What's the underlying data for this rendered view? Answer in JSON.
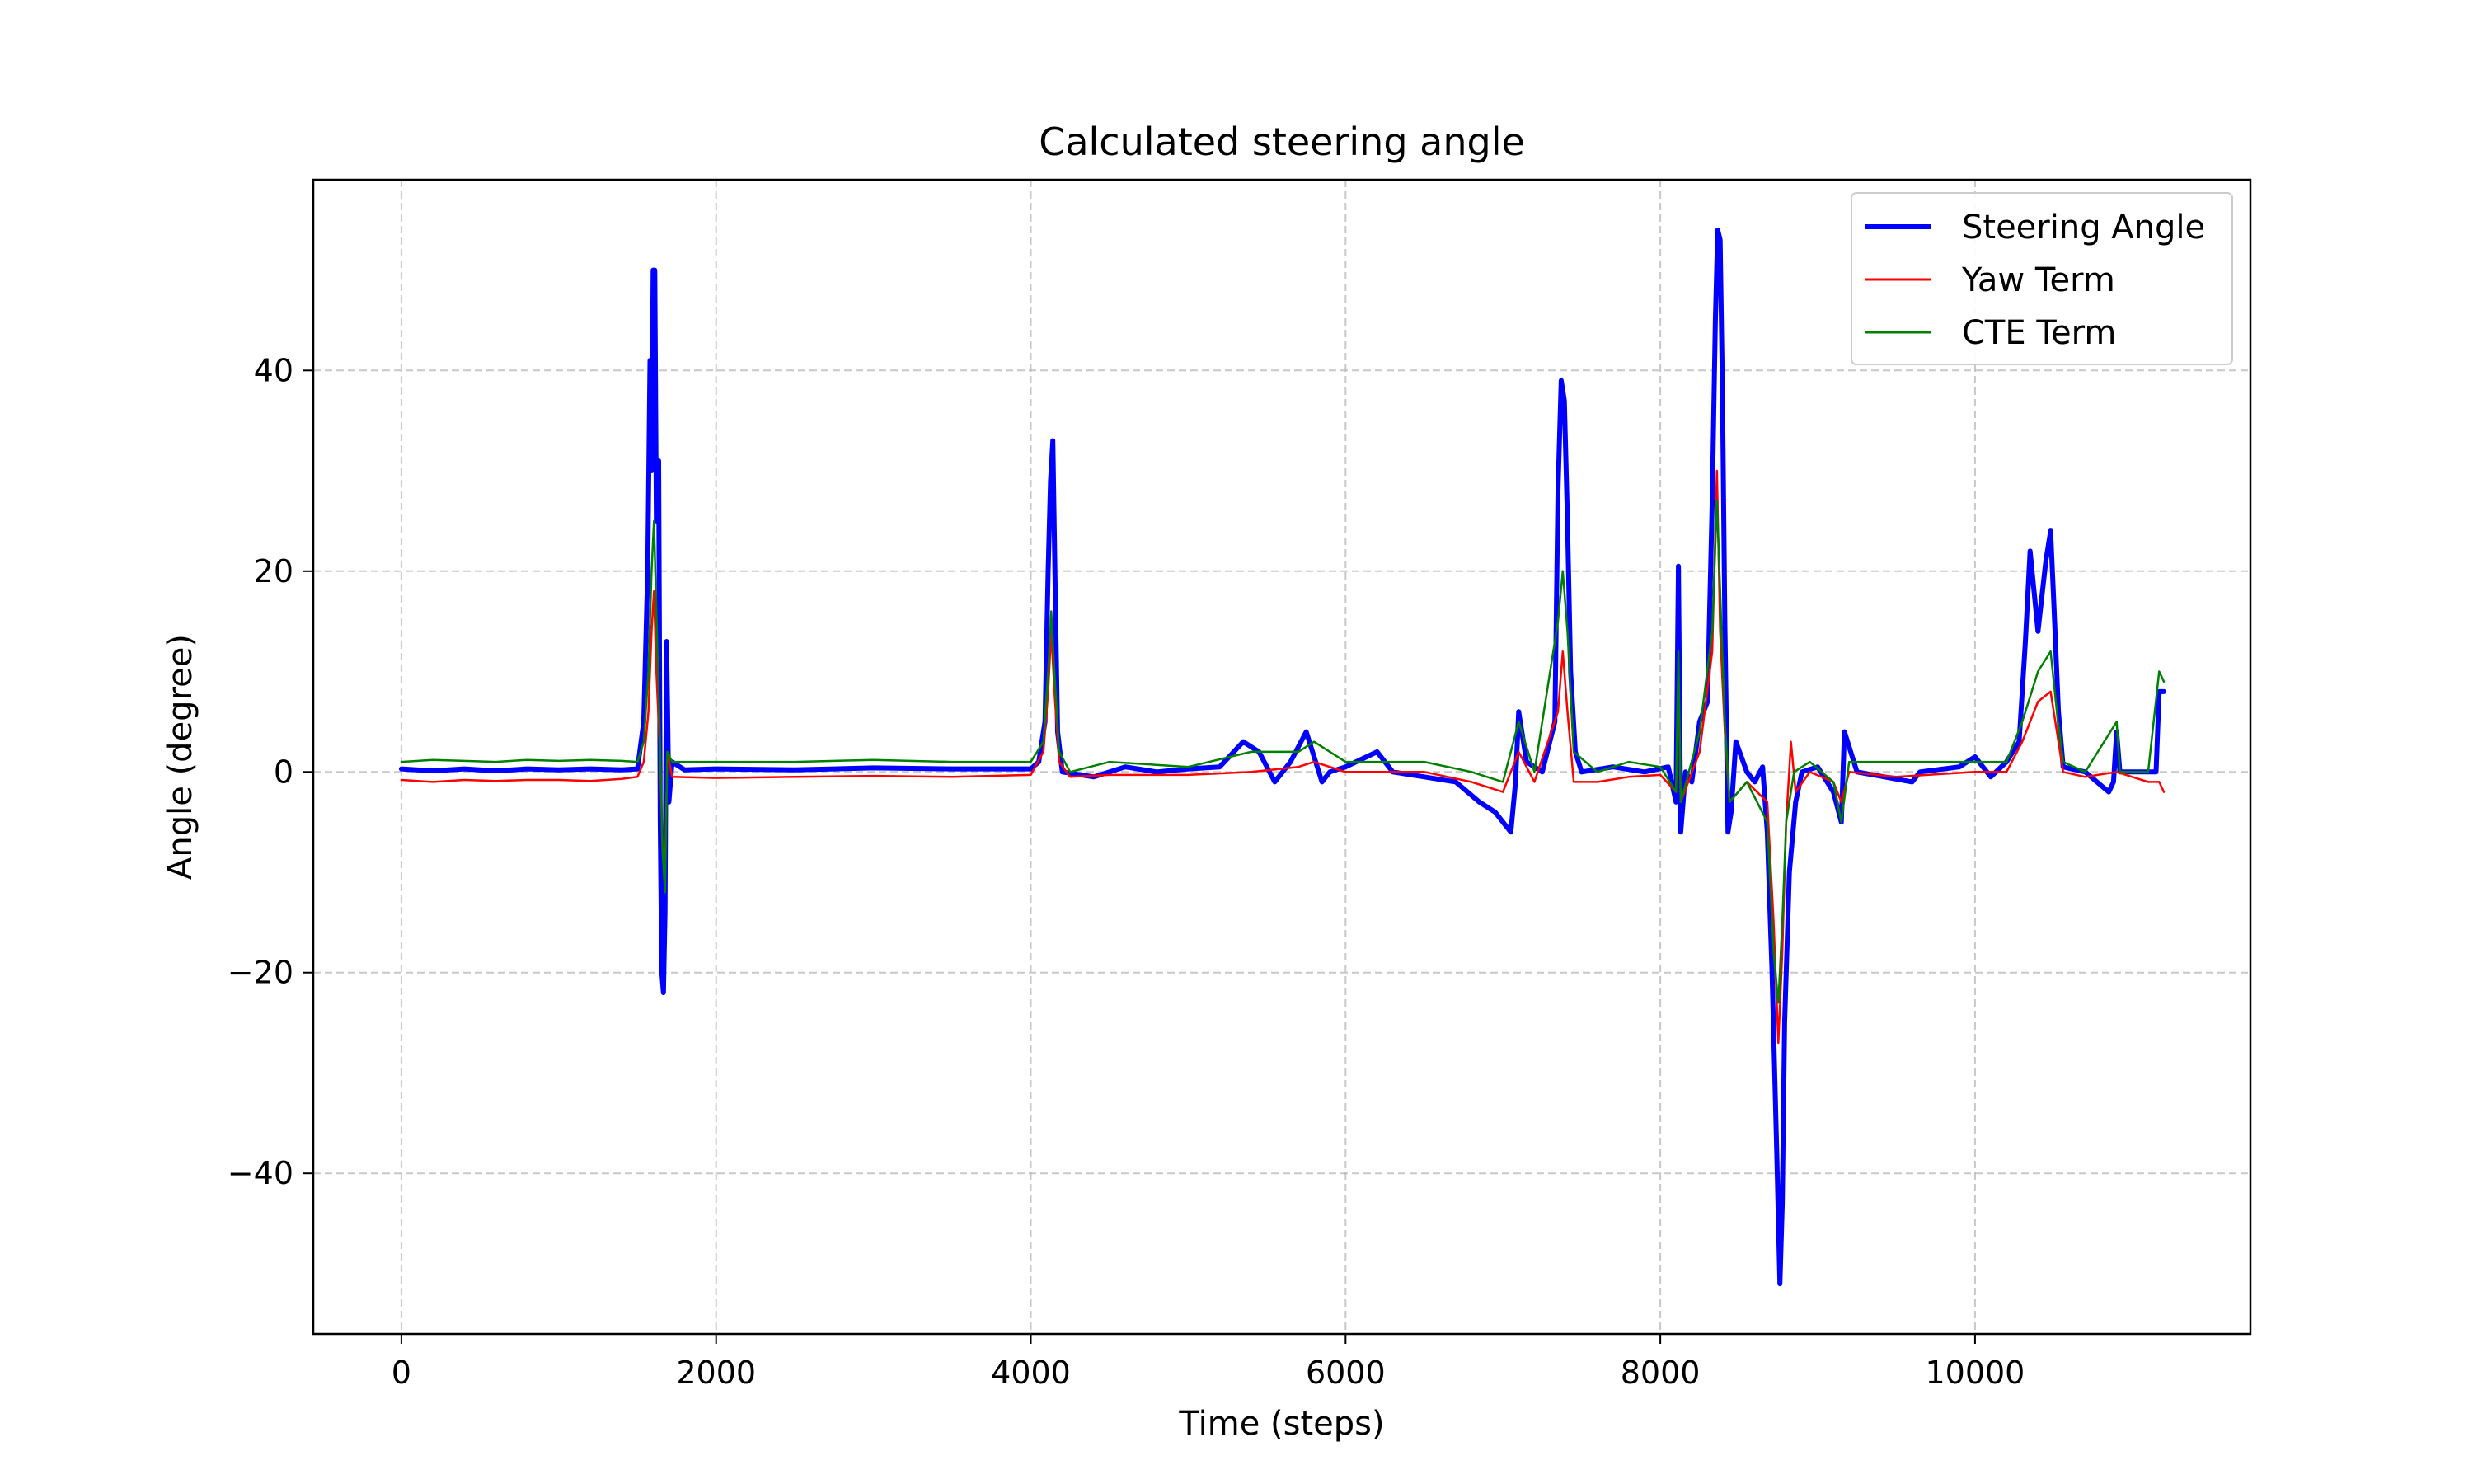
{
  "chart_data": {
    "type": "line",
    "title": "Calculated steering angle",
    "xlabel": "Time (steps)",
    "ylabel": "Angle (degree)",
    "xlim": [
      -560,
      11750
    ],
    "ylim": [
      -56,
      59
    ],
    "xticks": [
      0,
      2000,
      4000,
      6000,
      8000,
      10000
    ],
    "xtick_labels": [
      "0",
      "2000",
      "4000",
      "6000",
      "8000",
      "10000"
    ],
    "yticks": [
      -40,
      -20,
      0,
      20,
      40
    ],
    "ytick_labels": [
      "−40",
      "−20",
      "0",
      "20",
      "40"
    ],
    "grid": true,
    "legend_position": "top-right",
    "series": [
      {
        "name": "Steering Angle",
        "color": "#0000ff",
        "width": "thick",
        "points": [
          [
            0,
            0.3
          ],
          [
            200,
            0.1
          ],
          [
            400,
            0.3
          ],
          [
            600,
            0.1
          ],
          [
            800,
            0.3
          ],
          [
            1000,
            0.2
          ],
          [
            1200,
            0.3
          ],
          [
            1400,
            0.2
          ],
          [
            1500,
            0.3
          ],
          [
            1540,
            5
          ],
          [
            1565,
            20
          ],
          [
            1580,
            41
          ],
          [
            1590,
            30
          ],
          [
            1600,
            50
          ],
          [
            1610,
            50
          ],
          [
            1620,
            25
          ],
          [
            1635,
            31
          ],
          [
            1645,
            -5
          ],
          [
            1655,
            -20
          ],
          [
            1665,
            -22
          ],
          [
            1675,
            -14
          ],
          [
            1685,
            13
          ],
          [
            1700,
            -3
          ],
          [
            1720,
            1
          ],
          [
            1800,
            0.2
          ],
          [
            2000,
            0.3
          ],
          [
            2500,
            0.2
          ],
          [
            3000,
            0.4
          ],
          [
            3500,
            0.3
          ],
          [
            4000,
            0.3
          ],
          [
            4050,
            1
          ],
          [
            4090,
            5
          ],
          [
            4110,
            20
          ],
          [
            4125,
            29
          ],
          [
            4140,
            33
          ],
          [
            4155,
            18
          ],
          [
            4170,
            4
          ],
          [
            4200,
            0
          ],
          [
            4400,
            -0.5
          ],
          [
            4600,
            0.5
          ],
          [
            4800,
            0
          ],
          [
            5000,
            0.3
          ],
          [
            5200,
            0.5
          ],
          [
            5350,
            3
          ],
          [
            5450,
            2
          ],
          [
            5550,
            -1
          ],
          [
            5650,
            1
          ],
          [
            5750,
            4
          ],
          [
            5850,
            -1
          ],
          [
            5900,
            0
          ],
          [
            6000,
            0.5
          ],
          [
            6200,
            2
          ],
          [
            6300,
            0
          ],
          [
            6500,
            -0.5
          ],
          [
            6700,
            -1
          ],
          [
            6850,
            -3
          ],
          [
            6950,
            -4
          ],
          [
            7050,
            -6
          ],
          [
            7080,
            -1
          ],
          [
            7100,
            6
          ],
          [
            7150,
            1
          ],
          [
            7250,
            0
          ],
          [
            7330,
            5
          ],
          [
            7350,
            28
          ],
          [
            7370,
            39
          ],
          [
            7390,
            37
          ],
          [
            7410,
            25
          ],
          [
            7430,
            10
          ],
          [
            7460,
            2
          ],
          [
            7500,
            0
          ],
          [
            7700,
            0.5
          ],
          [
            7900,
            0
          ],
          [
            8050,
            0.5
          ],
          [
            8100,
            -3
          ],
          [
            8115,
            20.5
          ],
          [
            8130,
            -6
          ],
          [
            8160,
            0
          ],
          [
            8200,
            -1
          ],
          [
            8250,
            5
          ],
          [
            8300,
            7
          ],
          [
            8330,
            27
          ],
          [
            8350,
            45
          ],
          [
            8365,
            54
          ],
          [
            8380,
            53
          ],
          [
            8395,
            38
          ],
          [
            8410,
            15
          ],
          [
            8430,
            -6
          ],
          [
            8450,
            -4
          ],
          [
            8480,
            3
          ],
          [
            8550,
            0
          ],
          [
            8600,
            -1
          ],
          [
            8650,
            0.5
          ],
          [
            8680,
            -6
          ],
          [
            8710,
            -20
          ],
          [
            8740,
            -38
          ],
          [
            8760,
            -51
          ],
          [
            8775,
            -43
          ],
          [
            8790,
            -25
          ],
          [
            8820,
            -10
          ],
          [
            8860,
            -3
          ],
          [
            8900,
            0
          ],
          [
            9000,
            0.5
          ],
          [
            9100,
            -2
          ],
          [
            9150,
            -5
          ],
          [
            9170,
            4
          ],
          [
            9250,
            0
          ],
          [
            9600,
            -1
          ],
          [
            9650,
            0
          ],
          [
            9900,
            0.5
          ],
          [
            10000,
            1.5
          ],
          [
            10100,
            -0.5
          ],
          [
            10200,
            1
          ],
          [
            10280,
            3
          ],
          [
            10320,
            13
          ],
          [
            10350,
            22
          ],
          [
            10400,
            14
          ],
          [
            10450,
            21
          ],
          [
            10480,
            24
          ],
          [
            10500,
            17
          ],
          [
            10530,
            6
          ],
          [
            10560,
            0.5
          ],
          [
            10700,
            0
          ],
          [
            10850,
            -2
          ],
          [
            10880,
            -1
          ],
          [
            10900,
            4
          ],
          [
            10920,
            0
          ],
          [
            11100,
            0
          ],
          [
            11150,
            0
          ],
          [
            11170,
            8
          ],
          [
            11200,
            8
          ]
        ]
      },
      {
        "name": "Yaw Term",
        "color": "#ff0000",
        "width": "thin",
        "points": [
          [
            0,
            -0.8
          ],
          [
            200,
            -1
          ],
          [
            400,
            -0.8
          ],
          [
            600,
            -0.9
          ],
          [
            800,
            -0.8
          ],
          [
            1000,
            -0.8
          ],
          [
            1200,
            -0.9
          ],
          [
            1400,
            -0.7
          ],
          [
            1500,
            -0.5
          ],
          [
            1540,
            1
          ],
          [
            1570,
            6
          ],
          [
            1590,
            14
          ],
          [
            1605,
            18
          ],
          [
            1620,
            10
          ],
          [
            1640,
            3
          ],
          [
            1660,
            -8
          ],
          [
            1675,
            -10
          ],
          [
            1690,
            2
          ],
          [
            1720,
            -0.5
          ],
          [
            2000,
            -0.6
          ],
          [
            2500,
            -0.5
          ],
          [
            3000,
            -0.4
          ],
          [
            3500,
            -0.5
          ],
          [
            4000,
            -0.3
          ],
          [
            4080,
            2
          ],
          [
            4110,
            8
          ],
          [
            4130,
            14
          ],
          [
            4150,
            8
          ],
          [
            4180,
            1
          ],
          [
            4250,
            -0.5
          ],
          [
            4500,
            -0.3
          ],
          [
            5000,
            -0.3
          ],
          [
            5400,
            0
          ],
          [
            5700,
            0.5
          ],
          [
            5800,
            1
          ],
          [
            6000,
            0
          ],
          [
            6500,
            0
          ],
          [
            6800,
            -1
          ],
          [
            7000,
            -2
          ],
          [
            7100,
            2
          ],
          [
            7200,
            -1
          ],
          [
            7350,
            6
          ],
          [
            7380,
            12
          ],
          [
            7410,
            6
          ],
          [
            7450,
            -1
          ],
          [
            7600,
            -1
          ],
          [
            7800,
            -0.5
          ],
          [
            8000,
            -0.3
          ],
          [
            8100,
            -2
          ],
          [
            8115,
            10
          ],
          [
            8130,
            -3
          ],
          [
            8250,
            2
          ],
          [
            8330,
            12
          ],
          [
            8360,
            30
          ],
          [
            8380,
            14
          ],
          [
            8410,
            4
          ],
          [
            8440,
            -3
          ],
          [
            8550,
            -1
          ],
          [
            8680,
            -3
          ],
          [
            8720,
            -15
          ],
          [
            8750,
            -27
          ],
          [
            8775,
            -18
          ],
          [
            8800,
            -5
          ],
          [
            8830,
            3
          ],
          [
            8860,
            -2
          ],
          [
            8950,
            0
          ],
          [
            9100,
            -1
          ],
          [
            9150,
            -3
          ],
          [
            9200,
            0
          ],
          [
            9500,
            -0.5
          ],
          [
            10000,
            0
          ],
          [
            10200,
            0
          ],
          [
            10300,
            3
          ],
          [
            10400,
            7
          ],
          [
            10480,
            8
          ],
          [
            10520,
            4
          ],
          [
            10560,
            0
          ],
          [
            10700,
            -0.5
          ],
          [
            10900,
            0
          ],
          [
            11100,
            -1
          ],
          [
            11170,
            -1
          ],
          [
            11200,
            -2
          ]
        ]
      },
      {
        "name": "CTE Term",
        "color": "#008000",
        "width": "thin",
        "points": [
          [
            0,
            1
          ],
          [
            200,
            1.2
          ],
          [
            400,
            1.1
          ],
          [
            600,
            1
          ],
          [
            800,
            1.2
          ],
          [
            1000,
            1.1
          ],
          [
            1200,
            1.2
          ],
          [
            1400,
            1.1
          ],
          [
            1500,
            1
          ],
          [
            1540,
            3
          ],
          [
            1570,
            10
          ],
          [
            1590,
            20
          ],
          [
            1605,
            25
          ],
          [
            1620,
            16
          ],
          [
            1640,
            5
          ],
          [
            1660,
            -8
          ],
          [
            1675,
            -12
          ],
          [
            1690,
            2
          ],
          [
            1720,
            1
          ],
          [
            2000,
            1
          ],
          [
            2500,
            1
          ],
          [
            3000,
            1.2
          ],
          [
            3500,
            1
          ],
          [
            4000,
            1
          ],
          [
            4080,
            3
          ],
          [
            4110,
            10
          ],
          [
            4130,
            16
          ],
          [
            4150,
            10
          ],
          [
            4180,
            2
          ],
          [
            4250,
            0
          ],
          [
            4500,
            1
          ],
          [
            5000,
            0.5
          ],
          [
            5400,
            2
          ],
          [
            5700,
            2
          ],
          [
            5800,
            3
          ],
          [
            6000,
            1
          ],
          [
            6500,
            1
          ],
          [
            6800,
            0
          ],
          [
            7000,
            -1
          ],
          [
            7100,
            5
          ],
          [
            7200,
            0
          ],
          [
            7350,
            15
          ],
          [
            7380,
            20
          ],
          [
            7410,
            14
          ],
          [
            7450,
            2
          ],
          [
            7600,
            0
          ],
          [
            7800,
            1
          ],
          [
            8000,
            0.5
          ],
          [
            8100,
            -2
          ],
          [
            8115,
            12
          ],
          [
            8130,
            -3
          ],
          [
            8250,
            4
          ],
          [
            8330,
            14
          ],
          [
            8360,
            27
          ],
          [
            8380,
            18
          ],
          [
            8410,
            5
          ],
          [
            8440,
            -3
          ],
          [
            8550,
            -1
          ],
          [
            8680,
            -5
          ],
          [
            8720,
            -18
          ],
          [
            8750,
            -23
          ],
          [
            8775,
            -15
          ],
          [
            8800,
            -5
          ],
          [
            8850,
            0
          ],
          [
            8950,
            1
          ],
          [
            9100,
            -1
          ],
          [
            9150,
            -5
          ],
          [
            9200,
            1
          ],
          [
            9500,
            1
          ],
          [
            10000,
            1
          ],
          [
            10200,
            1
          ],
          [
            10300,
            5
          ],
          [
            10400,
            10
          ],
          [
            10480,
            12
          ],
          [
            10520,
            6
          ],
          [
            10560,
            1
          ],
          [
            10700,
            0
          ],
          [
            10900,
            5
          ],
          [
            10920,
            0
          ],
          [
            11100,
            0
          ],
          [
            11170,
            10
          ],
          [
            11200,
            9
          ]
        ]
      }
    ]
  }
}
